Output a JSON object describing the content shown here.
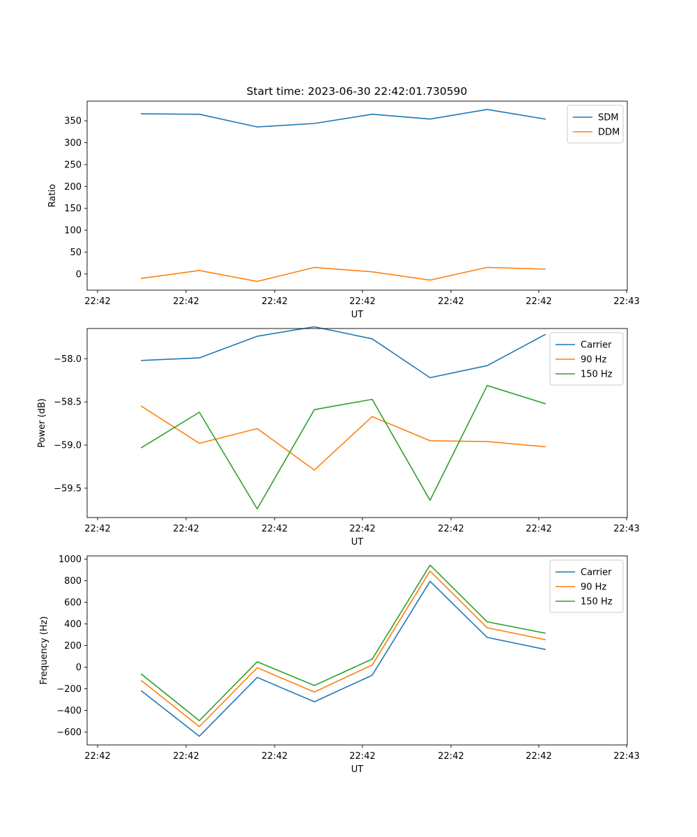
{
  "chart_data": [
    {
      "type": "line",
      "title": "Start time: 2023-06-30 22:42:01.730590",
      "xlabel": "UT",
      "ylabel": "Ratio",
      "x_tick_labels": [
        "22:42",
        "22:42",
        "22:42",
        "22:42",
        "22:42",
        "22:42",
        "22:43"
      ],
      "y_ticks": [
        0,
        50,
        100,
        150,
        200,
        250,
        300,
        350
      ],
      "y_tick_labels": [
        "0",
        "50",
        "100",
        "150",
        "200",
        "250",
        "300",
        "350"
      ],
      "ylim": [
        -37,
        395
      ],
      "legend": "top-right",
      "series": [
        {
          "name": "SDM",
          "color": "#1f77b4",
          "values": [
            366,
            365,
            336,
            344,
            365,
            354,
            376,
            354
          ]
        },
        {
          "name": "DDM",
          "color": "#ff7f0e",
          "values": [
            -10,
            8,
            -17,
            15,
            5,
            -14,
            15,
            11
          ]
        }
      ]
    },
    {
      "type": "line",
      "title": "",
      "xlabel": "UT",
      "ylabel": "Power (dB)",
      "x_tick_labels": [
        "22:42",
        "22:42",
        "22:42",
        "22:42",
        "22:42",
        "22:42",
        "22:43"
      ],
      "y_ticks": [
        -59.5,
        -59.0,
        -58.5,
        -58.0
      ],
      "y_tick_labels": [
        "−59.5",
        "−59.0",
        "−58.5",
        "−58.0"
      ],
      "ylim": [
        -59.84,
        -57.65
      ],
      "legend": "top-right",
      "series": [
        {
          "name": "Carrier",
          "color": "#1f77b4",
          "values": [
            -58.02,
            -57.99,
            -57.74,
            -57.63,
            -57.77,
            -58.22,
            -58.08,
            -57.72
          ]
        },
        {
          "name": "90 Hz",
          "color": "#ff7f0e",
          "values": [
            -58.55,
            -58.98,
            -58.81,
            -59.29,
            -58.67,
            -58.95,
            -58.96,
            -59.02
          ]
        },
        {
          "name": "150 Hz",
          "color": "#2ca02c",
          "values": [
            -59.03,
            -58.62,
            -59.74,
            -58.59,
            -58.47,
            -59.64,
            -58.31,
            -58.52
          ]
        }
      ]
    },
    {
      "type": "line",
      "title": "",
      "xlabel": "UT",
      "ylabel": "Frequency (Hz)",
      "x_tick_labels": [
        "22:42",
        "22:42",
        "22:42",
        "22:42",
        "22:42",
        "22:42",
        "22:43"
      ],
      "y_ticks": [
        -600,
        -400,
        -200,
        0,
        200,
        400,
        600,
        800,
        1000
      ],
      "y_tick_labels": [
        "−600",
        "−400",
        "−200",
        "0",
        "200",
        "400",
        "600",
        "800",
        "1000"
      ],
      "ylim": [
        -720,
        1030
      ],
      "legend": "top-right",
      "series": [
        {
          "name": "Carrier",
          "color": "#1f77b4",
          "values": [
            -220,
            -640,
            -95,
            -320,
            -75,
            795,
            275,
            165
          ]
        },
        {
          "name": "90 Hz",
          "color": "#ff7f0e",
          "values": [
            -125,
            -550,
            -5,
            -230,
            20,
            890,
            365,
            255
          ]
        },
        {
          "name": "150 Hz",
          "color": "#2ca02c",
          "values": [
            -65,
            -495,
            50,
            -170,
            75,
            945,
            420,
            315
          ]
        }
      ]
    }
  ]
}
